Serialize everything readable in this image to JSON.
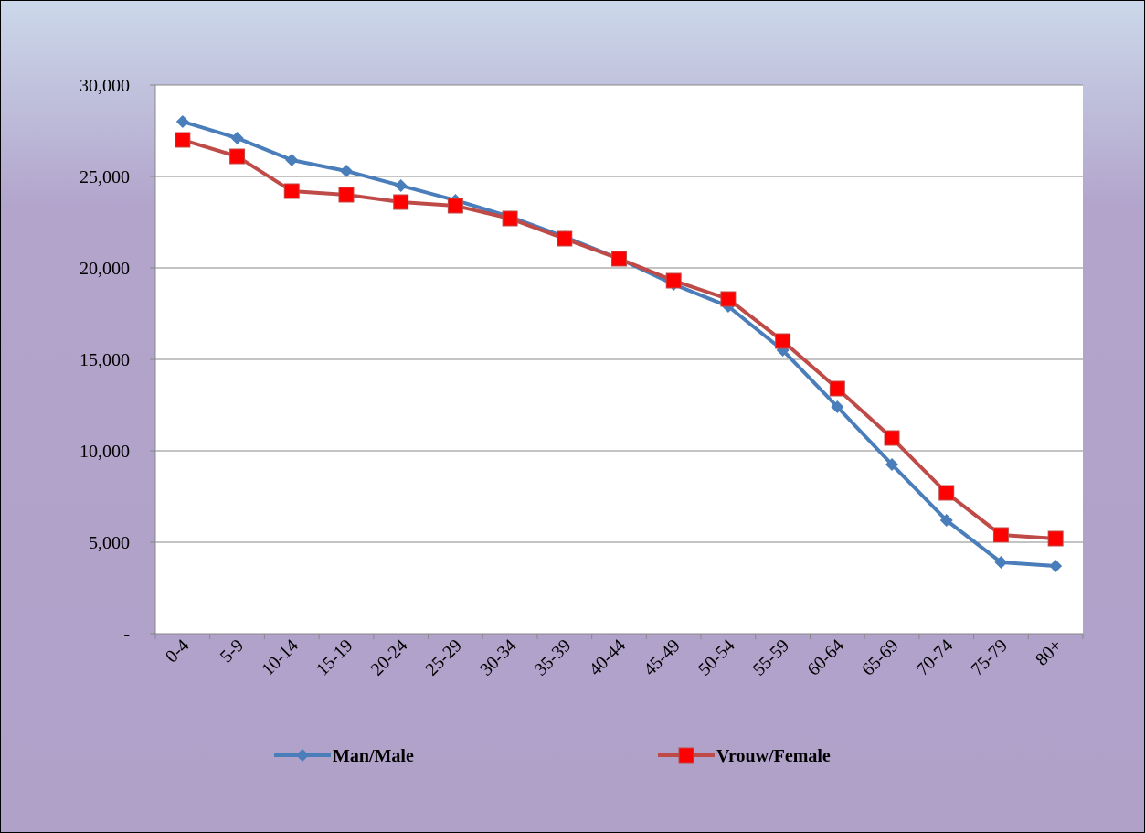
{
  "chart_data": {
    "type": "line",
    "categories": [
      "0-4",
      "5-9",
      "10-14",
      "15-19",
      "20-24",
      "25-29",
      "30-34",
      "35-39",
      "40-44",
      "45-49",
      "50-54",
      "55-59",
      "60-64",
      "65-69",
      "70-74",
      "75-79",
      "80+"
    ],
    "series": [
      {
        "name": "Man/Male",
        "color": "#4a7ebb",
        "marker": "diamond",
        "values": [
          28000,
          27100,
          25900,
          25300,
          24500,
          23700,
          22800,
          21700,
          20500,
          19100,
          17900,
          15500,
          12400,
          9250,
          6200,
          3900,
          3700
        ]
      },
      {
        "name": "Vrouw/Female",
        "color": "#be4b48",
        "marker": "square",
        "marker_color": "#ff0000",
        "values": [
          27000,
          26100,
          24200,
          24000,
          23600,
          23400,
          22700,
          21600,
          20500,
          19300,
          18300,
          16000,
          13400,
          10700,
          7700,
          5400,
          5200
        ]
      }
    ],
    "ylim": [
      0,
      30000
    ],
    "yticks": [
      {
        "value": 0,
        "label": "-"
      },
      {
        "value": 5000,
        "label": "5,000"
      },
      {
        "value": 10000,
        "label": "10,000"
      },
      {
        "value": 15000,
        "label": "15,000"
      },
      {
        "value": 20000,
        "label": "20,000"
      },
      {
        "value": 25000,
        "label": "25,000"
      },
      {
        "value": 30000,
        "label": "30,000"
      }
    ],
    "grid": true,
    "legend": "bottom"
  }
}
